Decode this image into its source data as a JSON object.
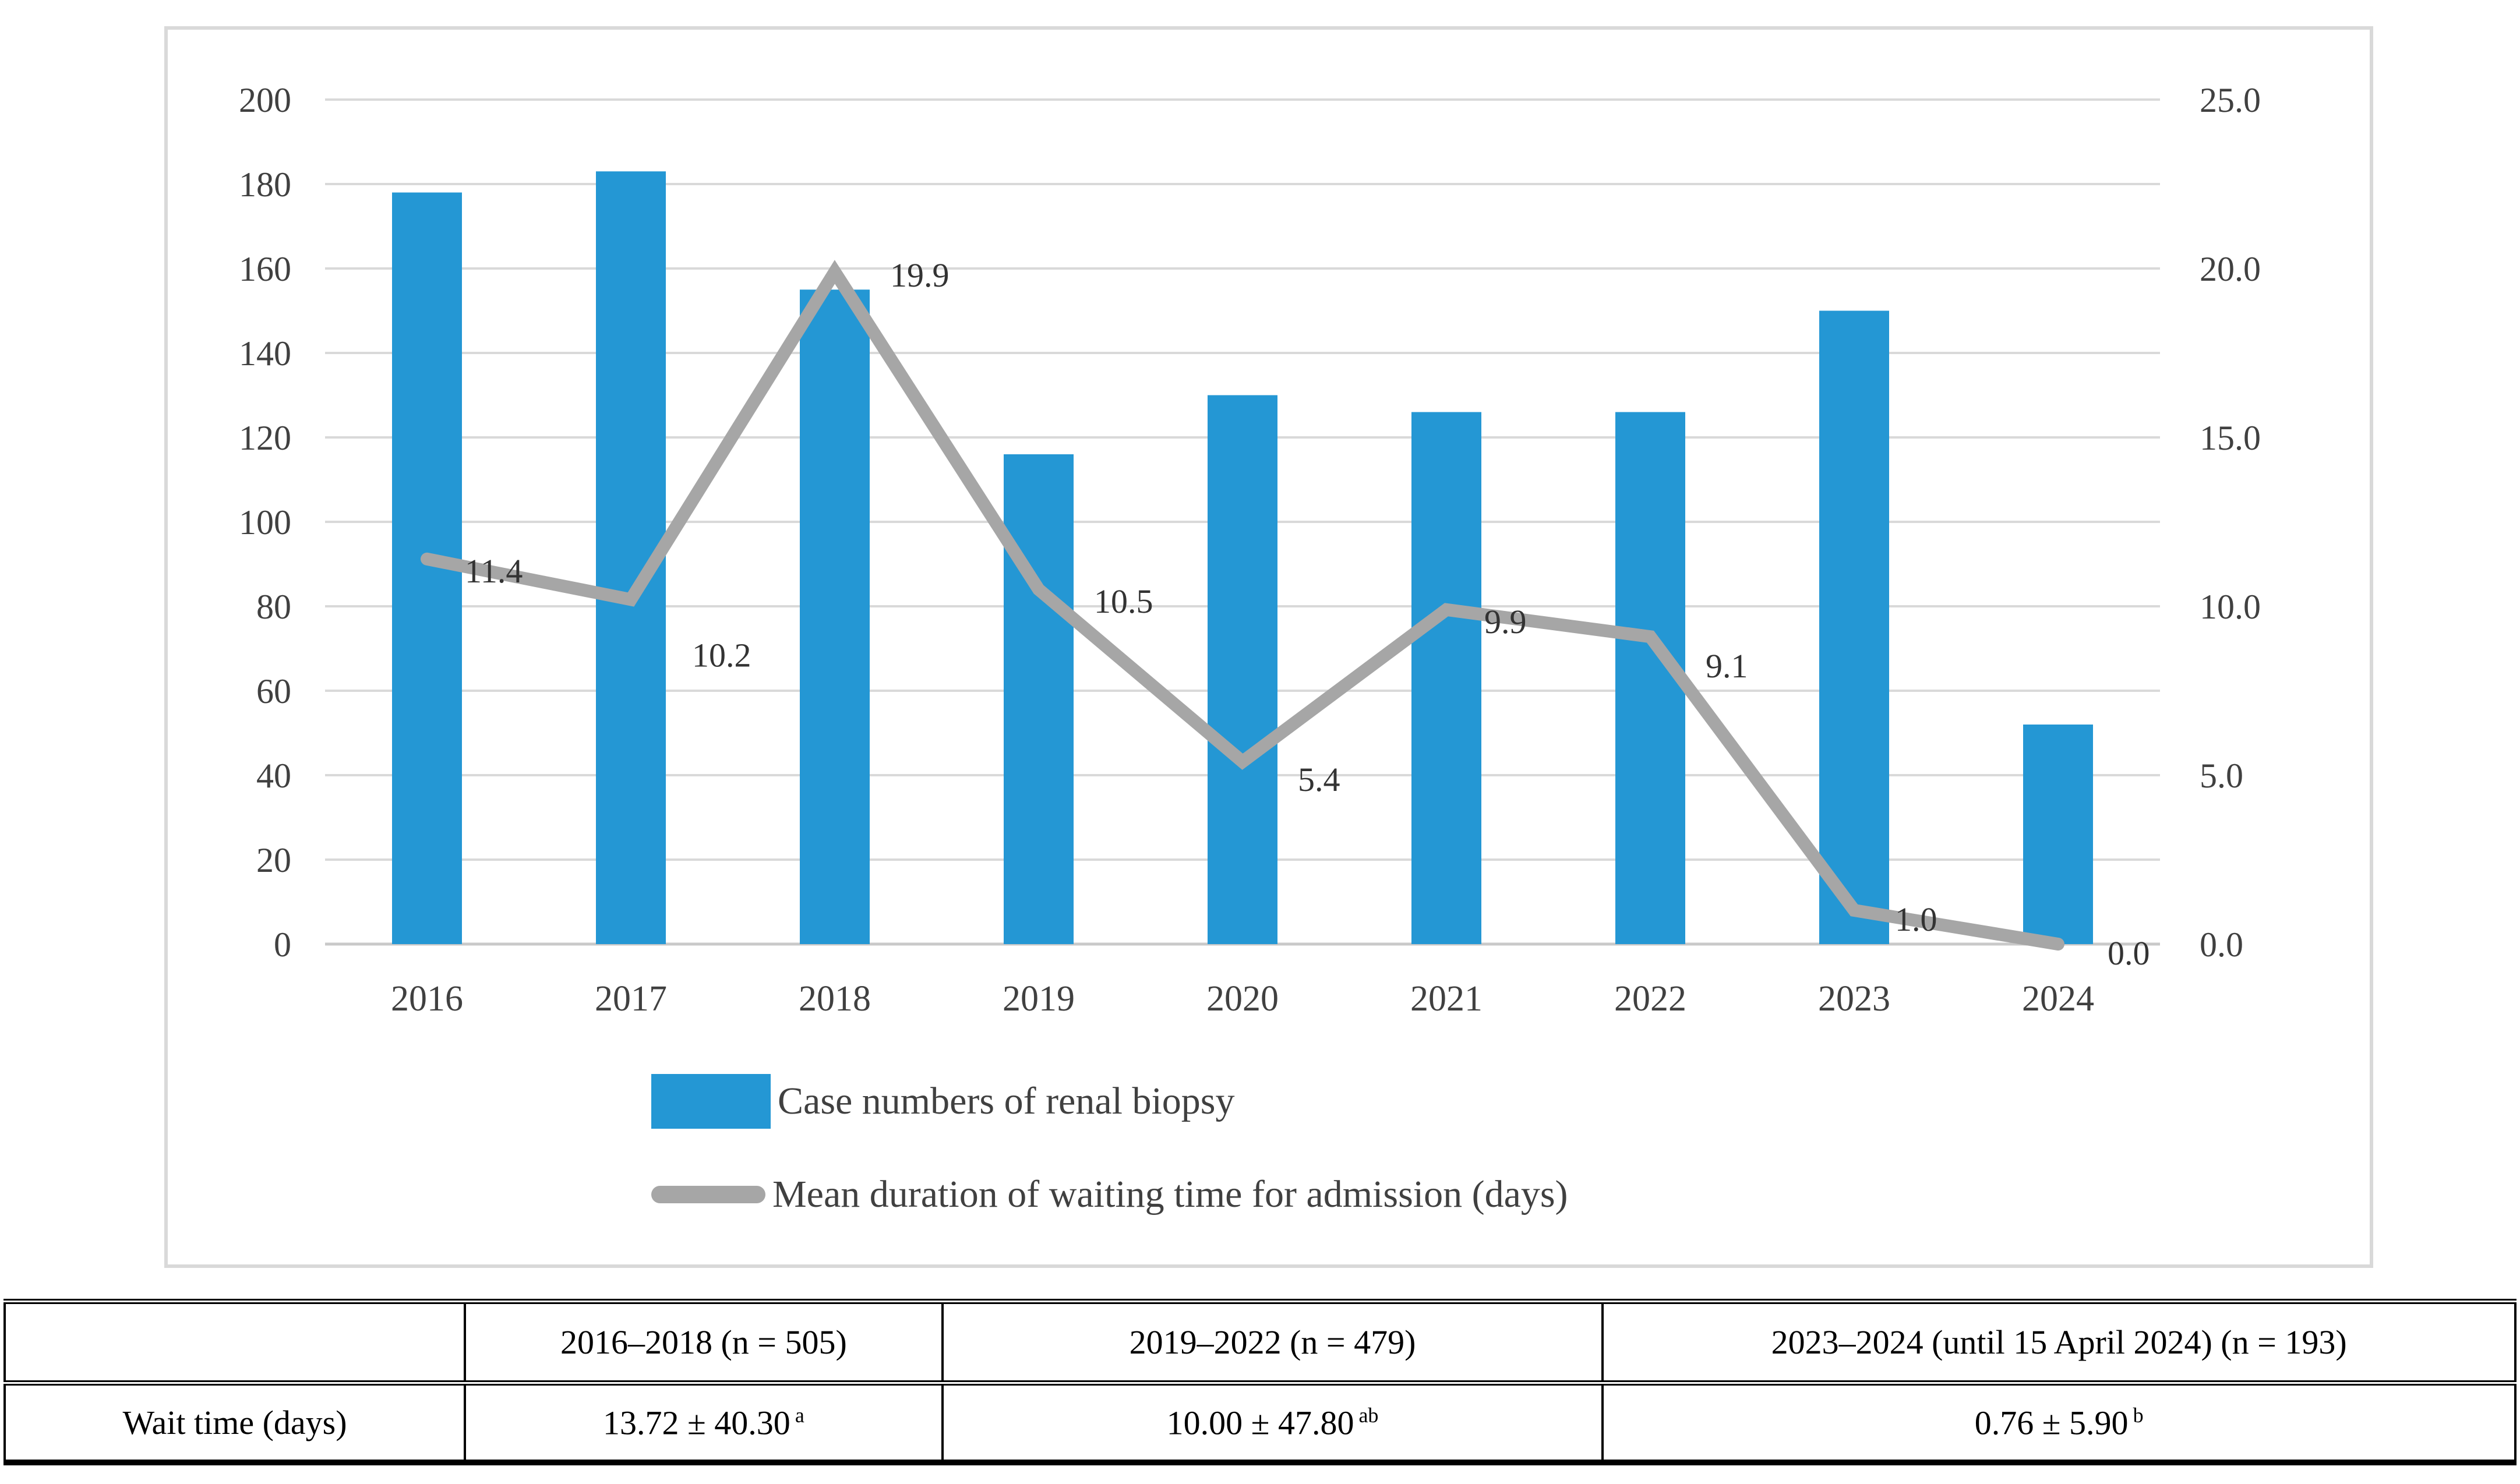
{
  "chart_data": {
    "type": "combo-bar-line",
    "categories": [
      "2016",
      "2017",
      "2018",
      "2019",
      "2020",
      "2021",
      "2022",
      "2023",
      "2024"
    ],
    "series": [
      {
        "name": "Case numbers of renal biopsy",
        "type": "bar",
        "axis": "left",
        "color": "#2497D4",
        "values": [
          178,
          183,
          155,
          116,
          130,
          126,
          126,
          150,
          52
        ]
      },
      {
        "name": "Mean duration of waiting time for admission (days)",
        "type": "line",
        "axis": "right",
        "color": "#A6A6A6",
        "values": [
          11.4,
          10.2,
          19.9,
          10.5,
          5.4,
          9.9,
          9.1,
          1.0,
          0.0
        ],
        "point_labels": [
          "11.4",
          "10.2",
          "19.9",
          "10.5",
          "5.4",
          "9.9",
          "9.1",
          "1.0",
          "0.0"
        ]
      }
    ],
    "left_axis": {
      "min": 0,
      "max": 200,
      "step": 20,
      "ticks": [
        "0",
        "20",
        "40",
        "60",
        "80",
        "100",
        "120",
        "140",
        "160",
        "180",
        "200"
      ]
    },
    "right_axis": {
      "min": 0,
      "max": 25,
      "step": 5,
      "ticks": [
        "0.0",
        "5.0",
        "10.0",
        "15.0",
        "20.0",
        "25.0"
      ]
    },
    "grid": true,
    "legend_position": "bottom-left"
  },
  "colors": {
    "bar": "#2497D4",
    "line": "#A6A6A6",
    "grid": "#D9D9D9",
    "baseline": "#C9C9C9",
    "axis_text": "#404040",
    "label_text": "#333333",
    "chart_border": "#D9D9D9"
  },
  "table": {
    "headers": [
      "",
      "2016–2018 (n = 505)",
      "2019–2022 (n = 479)",
      "2023–2024 (until 15 April 2024) (n = 193)"
    ],
    "rows": [
      {
        "label": "Wait time (days)",
        "cells": [
          {
            "value": "13.72 ± 40.30",
            "sup": "a"
          },
          {
            "value": "10.00 ± 47.80",
            "sup": "ab"
          },
          {
            "value": "0.76 ± 5.90",
            "sup": "b"
          }
        ]
      }
    ]
  }
}
